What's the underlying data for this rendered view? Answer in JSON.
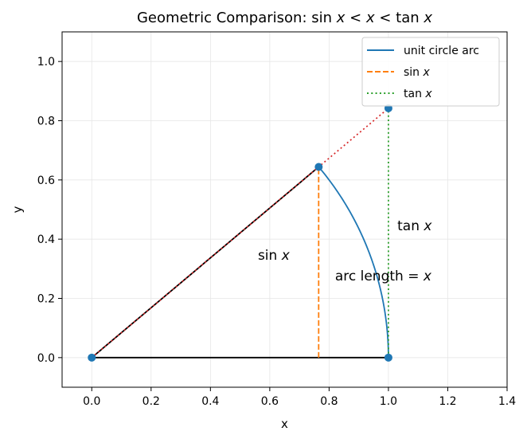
{
  "chart_data": {
    "type": "line",
    "title_parts": [
      "Geometric Comparison: ",
      "sin ",
      "x",
      " < ",
      "x",
      " < ",
      "tan ",
      "x"
    ],
    "xlabel": "x",
    "ylabel": "y",
    "xlim": [
      -0.1,
      1.4
    ],
    "ylim": [
      -0.1,
      1.1
    ],
    "xticks": [
      0.0,
      0.2,
      0.4,
      0.6,
      0.8,
      1.0,
      1.2,
      1.4
    ],
    "xtick_labels": [
      "0.0",
      "0.2",
      "0.4",
      "0.6",
      "0.8",
      "1.0",
      "1.2",
      "1.4"
    ],
    "yticks": [
      0.0,
      0.2,
      0.4,
      0.6,
      0.8,
      1.0
    ],
    "ytick_labels": [
      "0.0",
      "0.2",
      "0.4",
      "0.6",
      "0.8",
      "1.0"
    ],
    "grid": true,
    "legend_position": "top-right",
    "angle_x": 0.7,
    "series": [
      {
        "name": "unit circle arc",
        "style": "solid",
        "color": "#1f77b4"
      },
      {
        "name_parts": [
          "sin ",
          "x"
        ],
        "style": "dashed",
        "color": "#ff7f0e"
      },
      {
        "name_parts": [
          "tan ",
          "x"
        ],
        "style": "dotted",
        "color": "#2ca02c"
      }
    ],
    "points": [
      {
        "x": 0.0,
        "y": 0.0
      },
      {
        "x": 0.765,
        "y": 0.644
      },
      {
        "x": 1.0,
        "y": 0.0
      },
      {
        "x": 1.0,
        "y": 0.842
      }
    ],
    "segments": [
      {
        "kind": "radius",
        "x1": 0.0,
        "y1": 0.0,
        "x2": 1.0,
        "y2": 0.0,
        "color": "#000000",
        "style": "solid"
      },
      {
        "kind": "radius",
        "x1": 0.0,
        "y1": 0.0,
        "x2": 0.765,
        "y2": 0.644,
        "color": "#000000",
        "style": "solid"
      },
      {
        "kind": "extension",
        "x1": 0.0,
        "y1": 0.0,
        "x2": 1.0,
        "y2": 0.842,
        "color": "#d62728",
        "style": "dotted"
      }
    ],
    "annotations": [
      {
        "id": "sin-label",
        "x": 0.56,
        "y": 0.33,
        "parts": [
          "sin ",
          "x"
        ]
      },
      {
        "id": "tan-label",
        "x": 1.03,
        "y": 0.43,
        "parts": [
          "tan ",
          "x"
        ]
      },
      {
        "id": "arc-label",
        "x": 0.82,
        "y": 0.26,
        "parts": [
          "arc length = ",
          "x"
        ]
      }
    ],
    "point_color": "#1f77b4",
    "grid_color": "#e6e6e6"
  }
}
